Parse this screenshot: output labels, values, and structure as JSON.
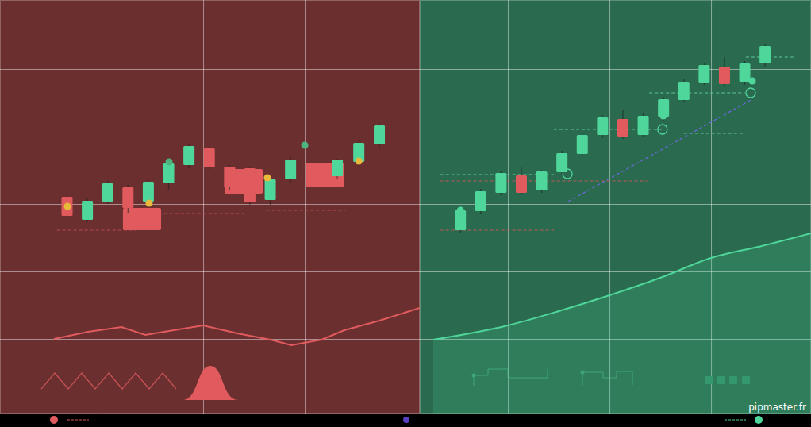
{
  "chart_data": [
    {
      "type": "candlestick",
      "grid": true,
      "tick_labels": false,
      "xlim": [
        0,
        20.66
      ],
      "ylim": [
        0,
        521
      ],
      "xticks": [
        5,
        10,
        15
      ],
      "yticks": [
        94,
        179,
        264,
        349,
        434
      ],
      "x": [
        3.3,
        4.3,
        5.3,
        6.3,
        7.3,
        8.3,
        9.3,
        10.3,
        11.3,
        12.3,
        13.3,
        14.3,
        16.6,
        17.66,
        18.67
      ],
      "open": [
        273,
        244,
        267,
        285,
        267,
        290,
        313,
        334,
        311,
        309,
        269,
        295,
        299,
        317,
        339
      ],
      "high": [
        276,
        271,
        293,
        288,
        296,
        319,
        339,
        336,
        313,
        311,
        298,
        323,
        321,
        345,
        367
      ],
      "low": [
        246,
        241,
        264,
        253,
        263,
        281,
        309,
        307,
        281,
        263,
        263,
        291,
        295,
        311,
        335
      ],
      "close": [
        249,
        268,
        290,
        259,
        292,
        315,
        337,
        310,
        285,
        266,
        295,
        320,
        320,
        341,
        363
      ],
      "zones": [
        {
          "x": [
            6.05,
            7.93
          ],
          "y": [
            231,
            259
          ]
        },
        {
          "x": [
            11.05,
            12.93
          ],
          "y": [
            277,
            308
          ]
        },
        {
          "x": [
            15.04,
            16.95
          ],
          "y": [
            286,
            316
          ]
        }
      ],
      "levels": [
        {
          "x": [
            2.8,
            6.7
          ],
          "y": 231,
          "color": "#b84a4d"
        },
        {
          "x": [
            7.8,
            12.0
          ],
          "y": 252,
          "color": "#b84a4d"
        },
        {
          "x": [
            13.1,
            17.0
          ],
          "y": 256,
          "color": "#b84a4d"
        }
      ],
      "markers": [
        {
          "x": 3.32,
          "y": 261,
          "color": "#e8b93a",
          "marker": "dot"
        },
        {
          "x": 7.34,
          "y": 265,
          "color": "#e8b93a",
          "marker": "dot"
        },
        {
          "x": 13.16,
          "y": 297,
          "color": "#e8b93a",
          "marker": "dot"
        },
        {
          "x": 17.66,
          "y": 318,
          "color": "#e8b93a",
          "marker": "dot"
        },
        {
          "x": 8.32,
          "y": 317,
          "color": "#4fb37f",
          "marker": "dot"
        },
        {
          "x": 15.0,
          "y": 338,
          "color": "#4fb37f",
          "marker": "dot"
        }
      ],
      "indicator": {
        "x": [
          2.66,
          4.34,
          5.98,
          7.15,
          8.32,
          10,
          11.68,
          13.32,
          14.34,
          15.82,
          16.95,
          18.67,
          20.66
        ],
        "y": [
          94,
          103,
          109,
          99,
          104,
          111,
          101,
          93,
          86,
          93,
          105,
          117,
          133
        ],
        "color": "#e05a5e"
      }
    },
    {
      "type": "candlestick",
      "grid": true,
      "tick_labels": false,
      "xlim": [
        0,
        19.26
      ],
      "ylim": [
        0,
        521
      ],
      "xticks": [
        4.34,
        9.34,
        14.34
      ],
      "yticks": [
        94,
        179,
        264,
        349,
        434
      ],
      "x": [
        2,
        3,
        4,
        5,
        6,
        7,
        8,
        9,
        10,
        11,
        12,
        13,
        14,
        15,
        16,
        17
      ],
      "open": [
        231,
        255,
        278,
        300,
        281,
        304,
        327,
        351,
        371,
        351,
        374,
        395,
        417,
        437,
        418,
        441
      ],
      "high": [
        259,
        283,
        306,
        311,
        307,
        331,
        354,
        376,
        382,
        378,
        399,
        421,
        442,
        449,
        444,
        466
      ],
      "low": [
        227,
        251,
        275,
        275,
        278,
        301,
        324,
        347,
        346,
        348,
        369,
        392,
        414,
        412,
        414,
        437
      ],
      "close": [
        256,
        280,
        303,
        278,
        305,
        328,
        351,
        373,
        349,
        375,
        396,
        418,
        439,
        415,
        441,
        463
      ],
      "levels": [
        {
          "x": [
            1.0,
            6.6
          ],
          "y": 231,
          "color": "#c0585a"
        },
        {
          "x": [
            1.0,
            6.6
          ],
          "y": 301,
          "color": "#5fc79a"
        },
        {
          "x": [
            1.0,
            11.2
          ],
          "y": 293,
          "color": "#c0585a"
        },
        {
          "x": [
            6.6,
            11.9
          ],
          "y": 358,
          "color": "#5fc79a"
        },
        {
          "x": [
            13.0,
            16.0
          ],
          "y": 353,
          "color": "#5fc79a"
        },
        {
          "x": [
            11.3,
            16.0
          ],
          "y": 404,
          "color": "#5fc79a"
        },
        {
          "x": [
            16.05,
            18.5
          ],
          "y": 449,
          "color": "#5fc79a"
        }
      ],
      "trendline": {
        "x": [
          7.3,
          16.37
        ],
        "y": [
          267,
          396
        ],
        "color": "#6a6adf",
        "line_style": "dashed"
      },
      "markers": [
        {
          "x": 2.0,
          "y": 256,
          "color": "#4fd69a",
          "marker": "dot"
        },
        {
          "x": 11.99,
          "y": 375,
          "color": "#4fd69a",
          "marker": "dot"
        },
        {
          "x": 16.37,
          "y": 419,
          "color": "#4fd69a",
          "marker": "dot"
        },
        {
          "x": 7.27,
          "y": 302,
          "color": "#4fd69a",
          "marker": "ring"
        },
        {
          "x": 11.95,
          "y": 358,
          "color": "#4fd69a",
          "marker": "ring"
        },
        {
          "x": 16.29,
          "y": 404,
          "color": "#4fd69a",
          "marker": "ring"
        }
      ],
      "indicator": {
        "x": [
          0.66,
          4.34,
          6.84,
          9.34,
          11.84,
          14.34,
          16.84,
          19.26
        ],
        "y": [
          93,
          111,
          129,
          149,
          171,
          196,
          211,
          227
        ],
        "color": "#4fd69a"
      }
    }
  ],
  "footer": {
    "text": "pipmaster.fr"
  }
}
